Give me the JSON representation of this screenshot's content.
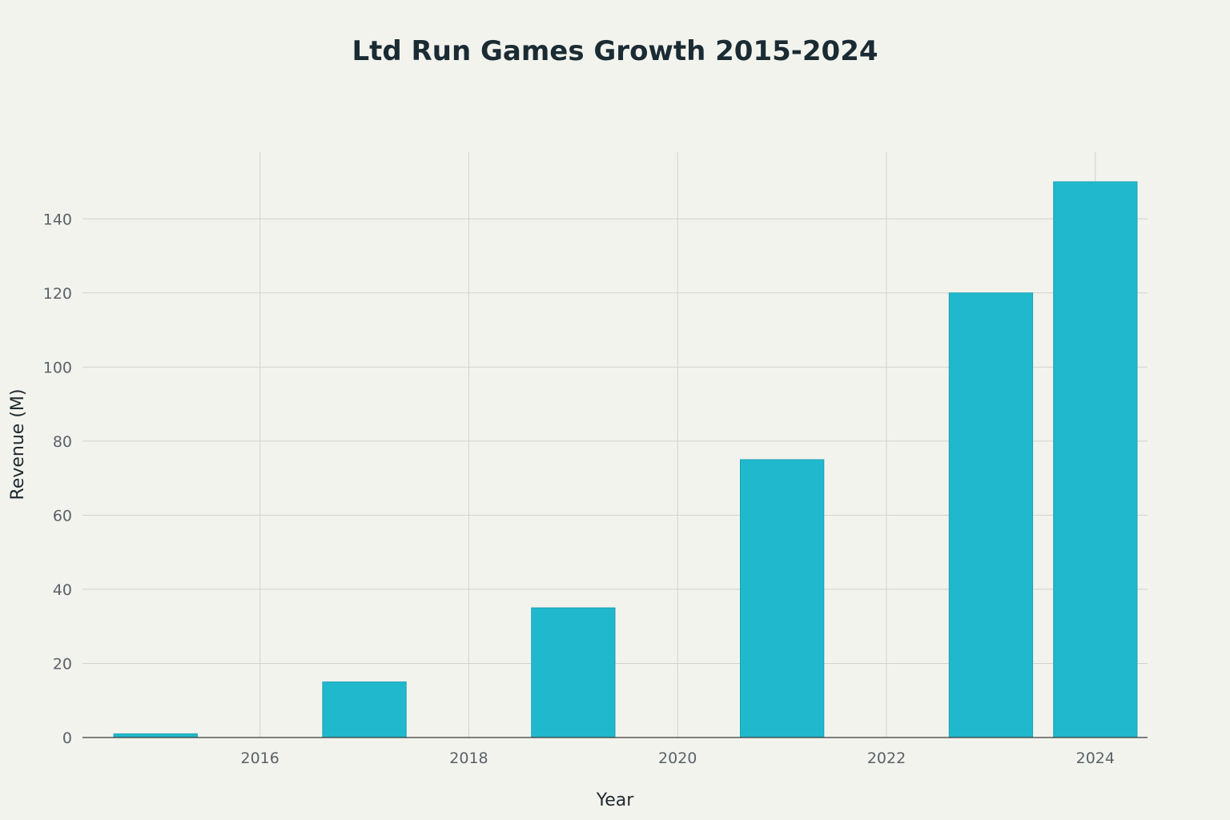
{
  "chart_data": {
    "type": "bar",
    "title": "Ltd Run Games Growth 2015-2024",
    "xlabel": "Year",
    "ylabel": "Revenue (M)",
    "x": [
      2015,
      2017,
      2019,
      2021,
      2023,
      2024
    ],
    "values": [
      1,
      15,
      35,
      75,
      120,
      150
    ],
    "xlim": [
      2014.3,
      2024.5
    ],
    "ylim": [
      0,
      158
    ],
    "xticks": [
      2016,
      2018,
      2020,
      2022,
      2024
    ],
    "yticks": [
      0,
      20,
      40,
      60,
      80,
      100,
      120,
      140
    ],
    "bar_width_years": 0.8,
    "grid": true,
    "bar_color": "#20b8cc"
  }
}
